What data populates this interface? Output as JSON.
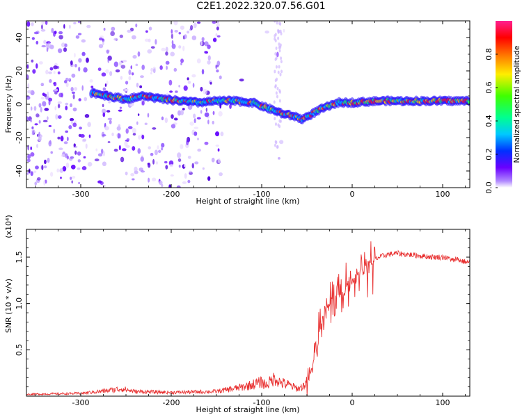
{
  "title": "C2E1.2022.320.07.56.G01",
  "chart_data": [
    {
      "type": "heatmap",
      "xlabel": "Height of straight line (km)",
      "ylabel": "Frequency (Hz)",
      "xlim": [
        -360,
        130
      ],
      "ylim": [
        -50,
        50
      ],
      "xticks": [
        -300,
        -200,
        -100,
        0,
        100
      ],
      "yticks": [
        -40,
        -20,
        0,
        20,
        40
      ],
      "colorbar": {
        "label": "Normalized spectral amplitude",
        "range": [
          0,
          1
        ],
        "ticks": [
          "0.0",
          "0.2",
          "0.4",
          "0.6",
          "0.8"
        ]
      },
      "signal_track": {
        "x": [
          -288,
          -270,
          -250,
          -230,
          -210,
          -190,
          -170,
          -150,
          -130,
          -110,
          -95,
          -85,
          -75,
          -65,
          -55,
          -45,
          -35,
          -25,
          -15,
          0,
          30,
          60,
          90,
          130
        ],
        "y": [
          7,
          5,
          3,
          5,
          3,
          2,
          1,
          2,
          2,
          1,
          -2,
          -4,
          -6,
          -7,
          -9,
          -6,
          -3,
          -1,
          1,
          1,
          2,
          2,
          2,
          2
        ]
      }
    },
    {
      "type": "line",
      "xlabel": "Height of straight line (km)",
      "ylabel": "SNR (10 * v/v)",
      "multiplier": "(x10⁴)",
      "xlim": [
        -360,
        130
      ],
      "ylim": [
        0,
        1.8
      ],
      "xticks": [
        -300,
        -200,
        -100,
        0,
        100
      ],
      "yticks": [
        "0.5",
        "1.0",
        "1.5"
      ],
      "color": "#e83030",
      "series_envelope": {
        "x": [
          -360,
          -300,
          -270,
          -255,
          -240,
          -200,
          -150,
          -120,
          -100,
          -95,
          -85,
          -80,
          -70,
          -60,
          -55,
          -50,
          -45,
          -40,
          -35,
          -30,
          -25,
          -20,
          -15,
          -10,
          -5,
          0,
          10,
          20,
          30,
          40,
          50,
          60,
          70,
          80,
          90,
          100,
          105,
          110,
          113,
          115,
          118,
          120,
          125,
          130
        ],
        "y": [
          0.02,
          0.03,
          0.06,
          0.08,
          0.05,
          0.04,
          0.05,
          0.1,
          0.15,
          0.12,
          0.2,
          0.15,
          0.12,
          0.08,
          0.1,
          0.15,
          0.3,
          0.5,
          0.75,
          0.95,
          1.0,
          1.1,
          1.15,
          1.05,
          1.2,
          1.25,
          1.35,
          1.45,
          1.5,
          1.53,
          1.54,
          1.53,
          1.52,
          1.51,
          1.5,
          1.5,
          1.49,
          1.48,
          1.46,
          1.5,
          1.47,
          1.46,
          1.45,
          1.44
        ]
      }
    }
  ]
}
